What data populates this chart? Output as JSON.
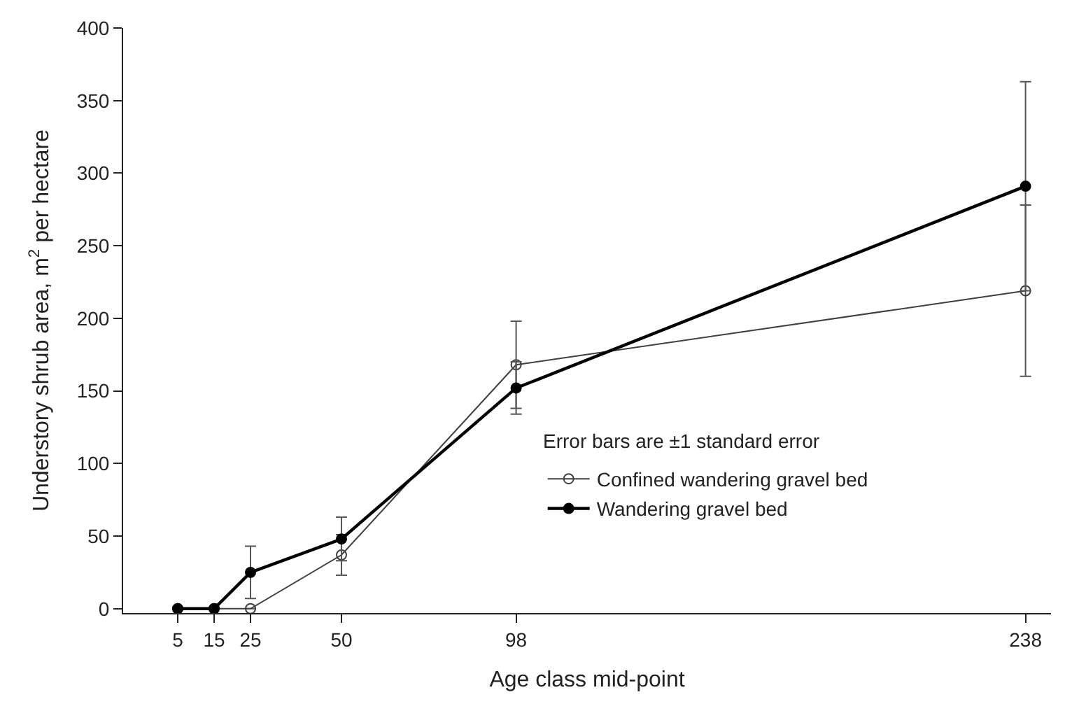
{
  "chart_data": {
    "type": "line",
    "xlabel": "Age class mid-point",
    "ylabel": "Understory shrub area, m$^{2}$ per hectare",
    "x": [
      5,
      15,
      25,
      50,
      98,
      238
    ],
    "series": [
      {
        "name": "Confined wandering gravel bed",
        "color": "#404040",
        "marker": "circle-open",
        "values": [
          0,
          0,
          0,
          37,
          168,
          219
        ],
        "errors": [
          null,
          null,
          null,
          14,
          30,
          59
        ]
      },
      {
        "name": "Wandering gravel bed",
        "color": "#000000",
        "marker": "circle",
        "values": [
          0,
          0,
          25,
          48,
          152,
          291
        ],
        "errors": [
          null,
          null,
          18,
          15,
          18,
          72
        ]
      }
    ],
    "xlim": [
      -10,
      245
    ],
    "xticks": [
      5,
      15,
      25,
      50,
      98,
      238
    ],
    "ylim": [
      -3,
      400
    ],
    "yticks": [
      0,
      50,
      100,
      150,
      200,
      250,
      300,
      350,
      400
    ],
    "legend": "bottom right",
    "line_style": "solid",
    "annotations": [
      "Error bars are ±1 standard error"
    ]
  }
}
